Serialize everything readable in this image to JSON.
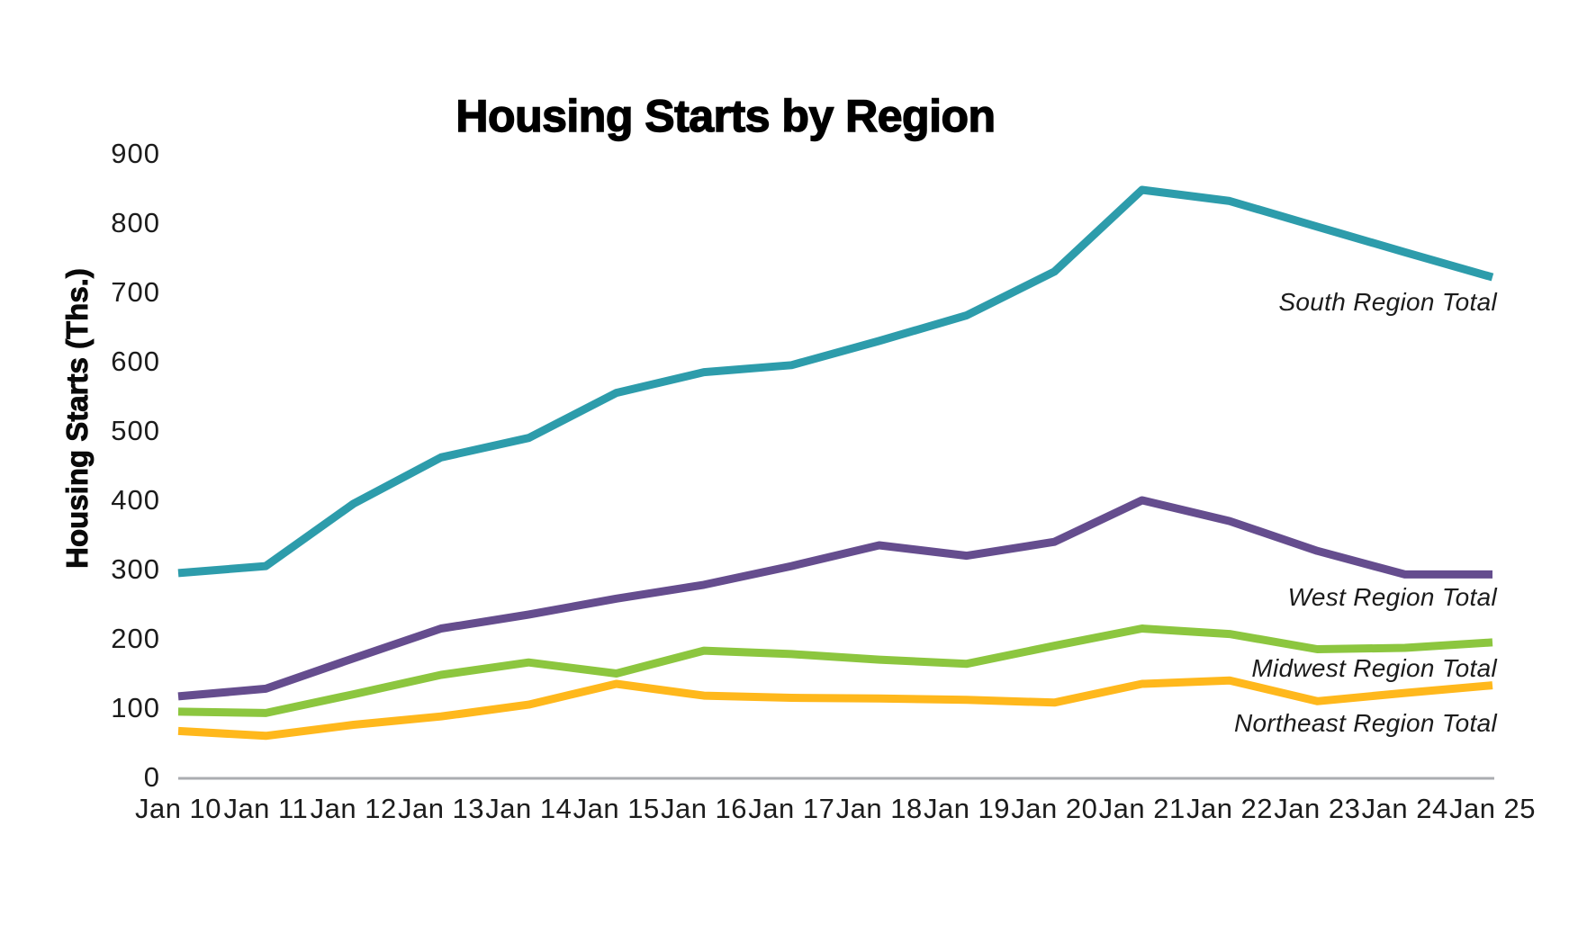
{
  "page": {
    "background": "#ffffff"
  },
  "chart_data": {
    "type": "line",
    "title": "Housing Starts by Region",
    "ylabel": "Housing Starts (Ths.)",
    "xlabel": "",
    "x": [
      "Jan 10",
      "Jan 11",
      "Jan 12",
      "Jan 13",
      "Jan 14",
      "Jan 15",
      "Jan 16",
      "Jan 17",
      "Jan 18",
      "Jan 19",
      "Jan 20",
      "Jan 21",
      "Jan 22",
      "Jan 23",
      "Jan 24",
      "Jan 25"
    ],
    "ylim": [
      0,
      900
    ],
    "yticks": [
      0,
      100,
      200,
      300,
      400,
      500,
      600,
      700,
      800,
      900
    ],
    "grid": false,
    "legend_position": "inline-right-of-lines",
    "axis_line_color": "#ABADB0",
    "text_color": "#1C1C1C",
    "series": [
      {
        "name": "South Region Total",
        "color": "#2D9CAB",
        "values": [
          295,
          305,
          395,
          462,
          490,
          555,
          585,
          595,
          630,
          667,
          730,
          848,
          832,
          795,
          758,
          722
        ]
      },
      {
        "name": "West Region Total",
        "color": "#654D8E",
        "values": [
          117,
          128,
          172,
          215,
          235,
          258,
          278,
          305,
          335,
          320,
          340,
          400,
          370,
          327,
          293,
          293
        ]
      },
      {
        "name": "Midwest Region Total",
        "color": "#8CC63F",
        "values": [
          95,
          93,
          120,
          148,
          166,
          150,
          183,
          178,
          170,
          164,
          190,
          215,
          207,
          185,
          187,
          195
        ]
      },
      {
        "name": "Northeast Region Total",
        "color": "#FFB81C",
        "values": [
          67,
          60,
          76,
          88,
          105,
          135,
          118,
          115,
          114,
          112,
          108,
          135,
          140,
          110,
          122,
          133
        ]
      }
    ]
  }
}
